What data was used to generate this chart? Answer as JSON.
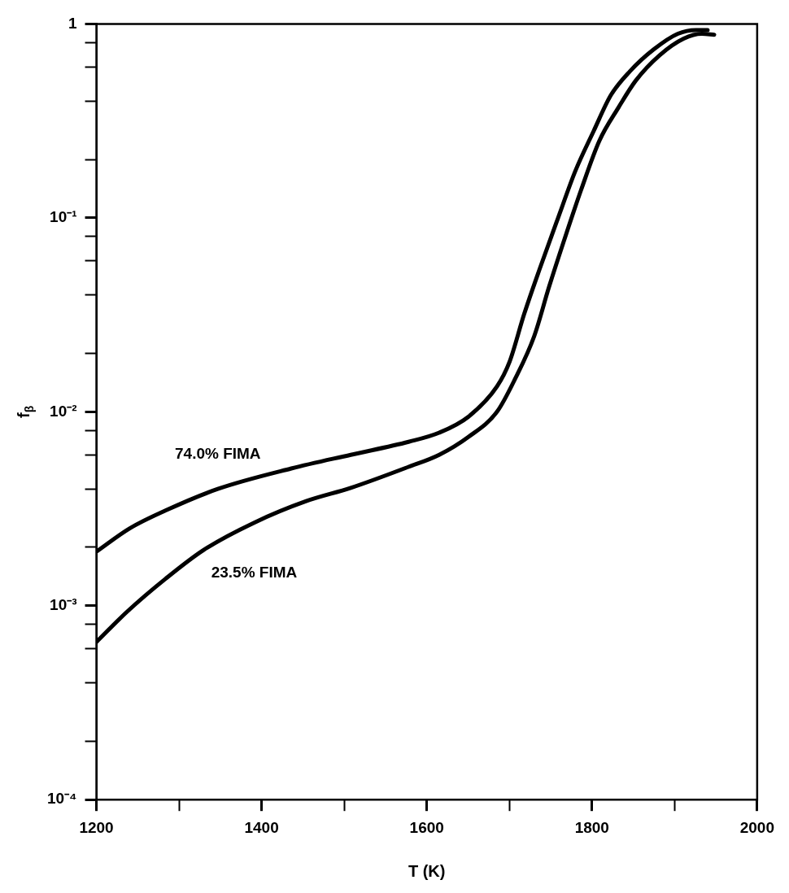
{
  "chart_data": {
    "type": "line",
    "xlabel": "T (K)",
    "ylabel": "f$_{β}$",
    "log": "y",
    "grid": false,
    "legend": false,
    "marker": "none",
    "line_style": "solid",
    "xlim": [
      1200,
      2000
    ],
    "xticks": [
      1200,
      {
        "value": 1300,
        "label": null
      },
      1400,
      {
        "value": 1500,
        "label": null
      },
      1600,
      {
        "value": 1700,
        "label": null
      },
      1800,
      {
        "value": 1900,
        "label": null
      },
      2000
    ],
    "ylim": [
      0.0001,
      1
    ],
    "yticks": [
      {
        "value": 0.0001,
        "label": "10⁻⁴"
      },
      {
        "value": 0.0002,
        "label": null
      },
      {
        "value": 0.0004,
        "label": null
      },
      {
        "value": 0.0006,
        "label": null
      },
      {
        "value": 0.0008,
        "label": null
      },
      {
        "value": 0.001,
        "label": "10⁻³"
      },
      {
        "value": 0.002,
        "label": null
      },
      {
        "value": 0.004,
        "label": null
      },
      {
        "value": 0.006,
        "label": null
      },
      {
        "value": 0.008,
        "label": null
      },
      {
        "value": 0.01,
        "label": "10⁻²"
      },
      {
        "value": 0.02,
        "label": null
      },
      {
        "value": 0.04,
        "label": null
      },
      {
        "value": 0.06,
        "label": null
      },
      {
        "value": 0.08,
        "label": null
      },
      {
        "value": 0.1,
        "label": "10⁻¹"
      },
      {
        "value": 0.2,
        "label": null
      },
      {
        "value": 0.4,
        "label": null
      },
      {
        "value": 0.6,
        "label": null
      },
      {
        "value": 0.8,
        "label": null
      },
      1
    ],
    "series": [
      {
        "name": "74.0% FIMA",
        "color": "#000000",
        "x": [
          1200,
          1240,
          1284,
          1347,
          1436,
          1508,
          1578,
          1615,
          1650,
          1685,
          1700,
          1718,
          1737,
          1759,
          1780,
          1802,
          1823,
          1846,
          1875,
          1904,
          1926,
          1940
        ],
        "values": [
          0.0019,
          0.0025,
          0.0031,
          0.004,
          0.0051,
          0.006,
          0.007,
          0.0078,
          0.0094,
          0.0135,
          0.018,
          0.032,
          0.055,
          0.1,
          0.175,
          0.28,
          0.43,
          0.57,
          0.74,
          0.89,
          0.93,
          0.93
        ]
      },
      {
        "name": "23.5% FIMA",
        "color": "#000000",
        "x": [
          1200,
          1237,
          1284,
          1330,
          1391,
          1454,
          1508,
          1578,
          1615,
          1650,
          1685,
          1707,
          1730,
          1748,
          1766,
          1787,
          1809,
          1832,
          1853,
          1882,
          1911,
          1933,
          1948
        ],
        "values": [
          0.00065,
          0.00093,
          0.00138,
          0.00194,
          0.00268,
          0.00346,
          0.00405,
          0.0052,
          0.006,
          0.0074,
          0.01,
          0.0148,
          0.0245,
          0.044,
          0.076,
          0.14,
          0.25,
          0.37,
          0.51,
          0.69,
          0.84,
          0.89,
          0.88
        ]
      }
    ]
  }
}
